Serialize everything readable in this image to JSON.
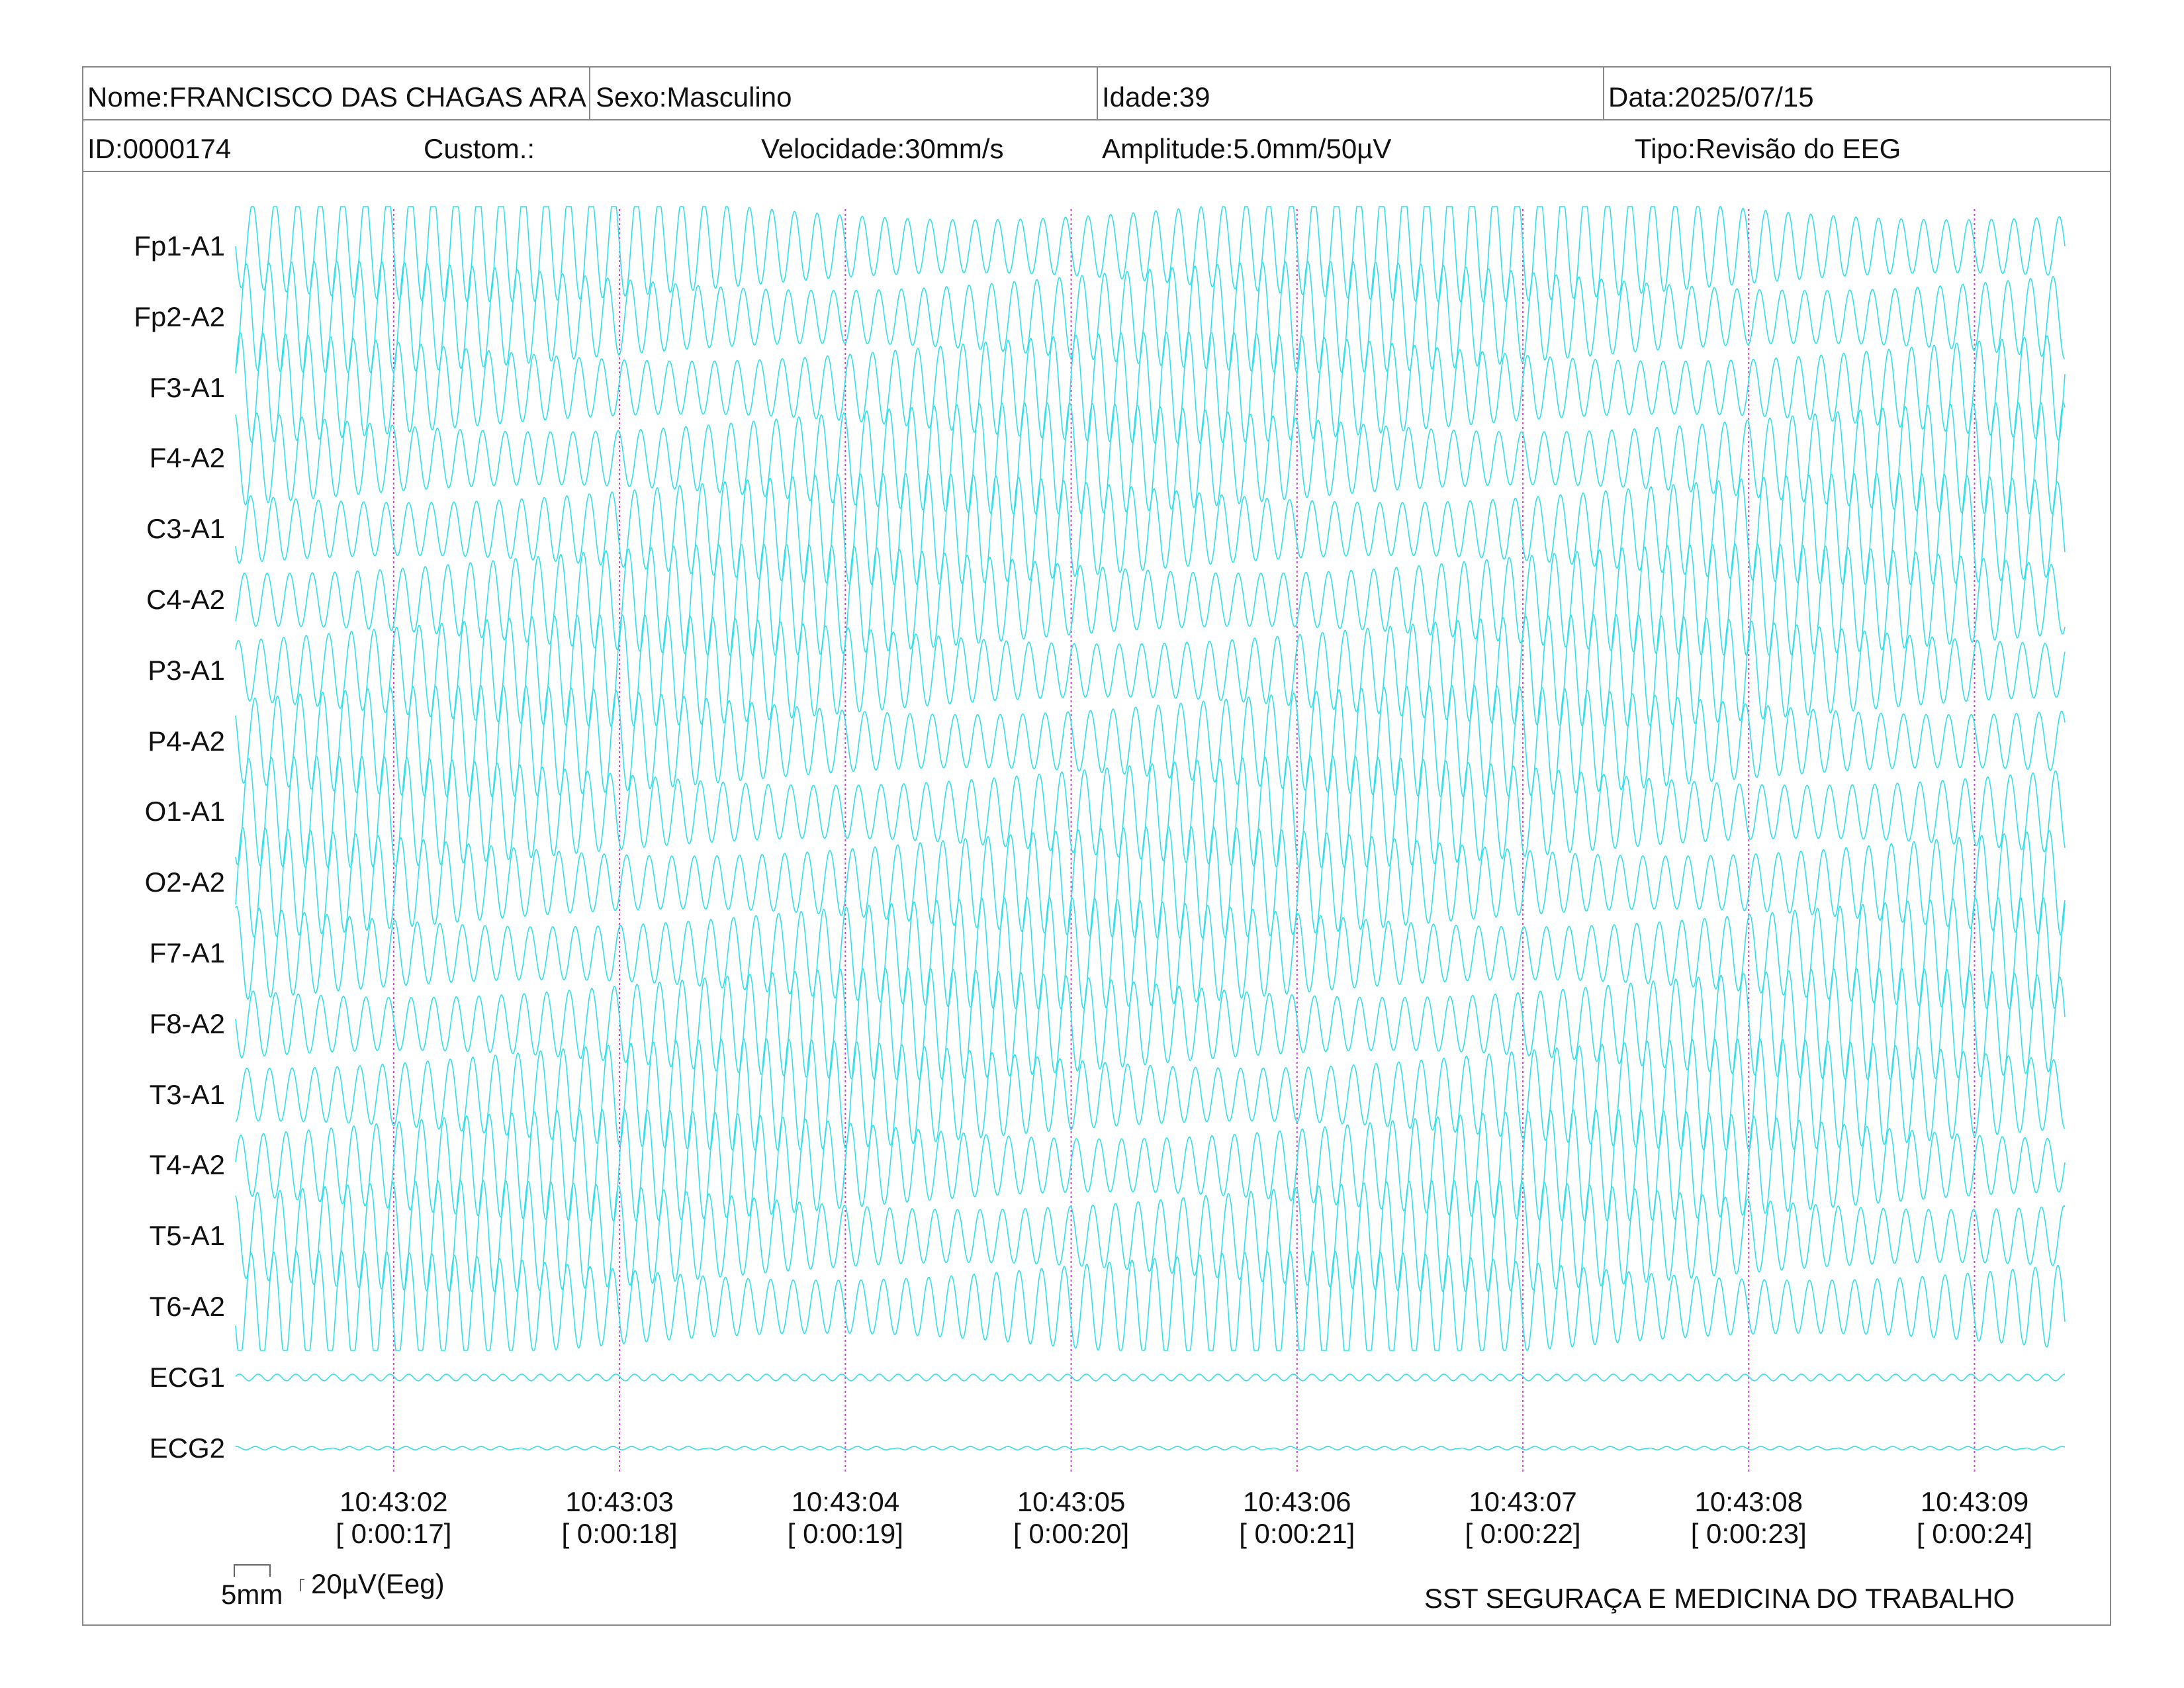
{
  "header": {
    "row1": [
      {
        "name": "patient-name",
        "text": "Nome:FRANCISCO DAS CHAGAS ARA"
      },
      {
        "name": "sex",
        "text": "Sexo:Masculino"
      },
      {
        "name": "age",
        "text": "Idade:39"
      },
      {
        "name": "date",
        "text": "Data:2025/07/15"
      }
    ],
    "row2": [
      {
        "name": "patient-id",
        "text": "ID:0000174"
      },
      {
        "name": "custom",
        "text": "Custom.:"
      },
      {
        "name": "speed",
        "text": "Velocidade:30mm/s"
      },
      {
        "name": "amplitude",
        "text": "Amplitude:5.0mm/50µV"
      },
      {
        "name": "type",
        "text": "Tipo:Revisão do EEG"
      }
    ]
  },
  "chart_data": {
    "type": "line",
    "channels": [
      "Fp1-A1",
      "Fp2-A2",
      "F3-A1",
      "F4-A2",
      "C3-A1",
      "C4-A2",
      "P3-A1",
      "P4-A2",
      "O1-A1",
      "O2-A2",
      "F7-A1",
      "F8-A2",
      "T3-A1",
      "T4-A2",
      "T5-A1",
      "T6-A2",
      "ECG1",
      "ECG2"
    ],
    "time_marks": [
      {
        "clock": "10:43:02",
        "elapsed": "[ 0:00:17]"
      },
      {
        "clock": "10:43:03",
        "elapsed": "[ 0:00:18]"
      },
      {
        "clock": "10:43:04",
        "elapsed": "[ 0:00:19]"
      },
      {
        "clock": "10:43:05",
        "elapsed": "[ 0:00:20]"
      },
      {
        "clock": "10:43:06",
        "elapsed": "[ 0:00:21]"
      },
      {
        "clock": "10:43:07",
        "elapsed": "[ 0:00:22]"
      },
      {
        "clock": "10:43:08",
        "elapsed": "[ 0:00:23]"
      },
      {
        "clock": "10:43:09",
        "elapsed": "[ 0:00:24]"
      }
    ],
    "time_range_s": [
      16.3,
      24.4
    ],
    "eeg_frequency_hz": 10,
    "trace_color": "#33e0ea",
    "marker_color": "#cc44cc"
  },
  "footer": {
    "scale_time": "5mm",
    "scale_amp": "20µV(Eeg)",
    "company": "SST SEGURAÇA E MEDICINA DO TRABALHO"
  }
}
